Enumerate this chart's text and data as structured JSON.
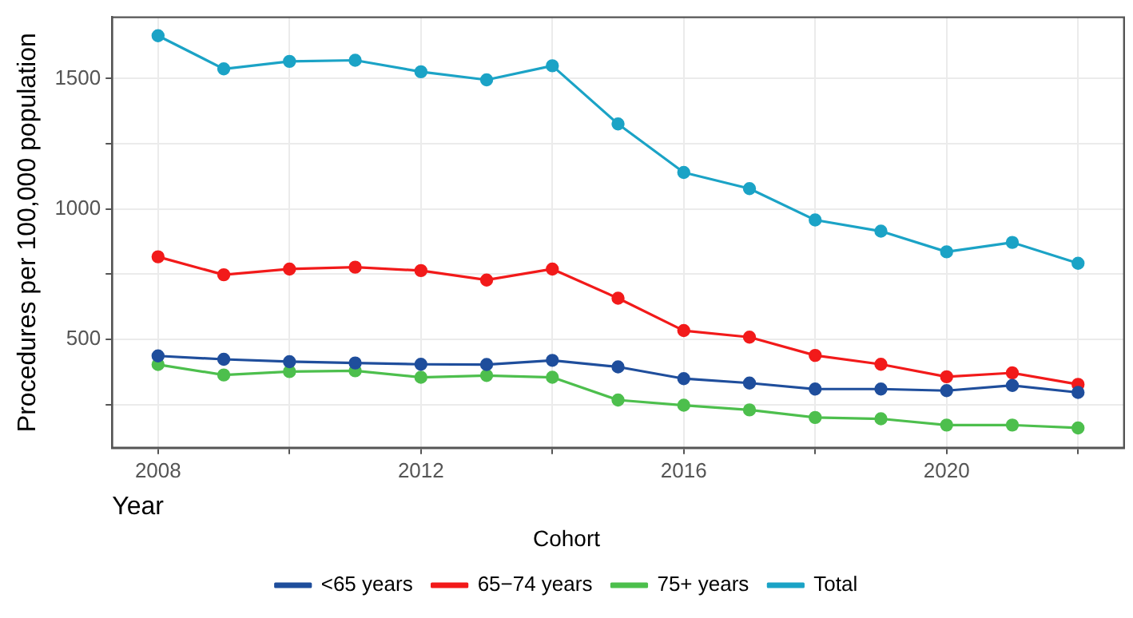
{
  "chart_data": {
    "type": "line",
    "xlabel": "Year",
    "ylabel": "Procedures per 100,000 population",
    "legend_title": "Cohort",
    "legend": "bottom",
    "grid": true,
    "marker": "circle",
    "line_style": "solid",
    "x": [
      2008,
      2009,
      2010,
      2011,
      2012,
      2013,
      2014,
      2015,
      2016,
      2017,
      2018,
      2019,
      2020,
      2021,
      2022
    ],
    "xlim": [
      2007.3,
      2022.7
    ],
    "xticks": [
      2008,
      {
        "value": 2010,
        "label": null
      },
      2012,
      {
        "value": 2014,
        "label": null
      },
      2016,
      {
        "value": 2018,
        "label": null
      },
      2020,
      {
        "value": 2022,
        "label": null
      }
    ],
    "ylim": [
      85,
      1735
    ],
    "yticks": [
      {
        "value": 250,
        "label": null
      },
      500,
      {
        "value": 750,
        "label": null
      },
      1000,
      {
        "value": 1250,
        "label": null
      },
      1500
    ],
    "series": [
      {
        "name": "<65 years",
        "color": "#1f4e9c",
        "values": [
          437,
          424,
          415,
          410,
          405,
          404,
          420,
          395,
          350,
          333,
          310,
          310,
          304,
          324,
          297
        ]
      },
      {
        "name": "65−74 years",
        "color": "#f21a1a",
        "values": [
          817,
          748,
          770,
          777,
          764,
          728,
          770,
          658,
          534,
          509,
          439,
          405,
          357,
          372,
          328
        ]
      },
      {
        "name": "75+ years",
        "color": "#4dbf4d",
        "values": [
          404,
          364,
          377,
          380,
          355,
          362,
          355,
          268,
          248,
          230,
          201,
          196,
          172,
          172,
          161
        ]
      },
      {
        "name": "Total",
        "color": "#1ba3c6",
        "values": [
          1664,
          1537,
          1566,
          1570,
          1526,
          1495,
          1549,
          1326,
          1140,
          1078,
          958,
          915,
          836,
          872,
          792
        ]
      }
    ]
  }
}
